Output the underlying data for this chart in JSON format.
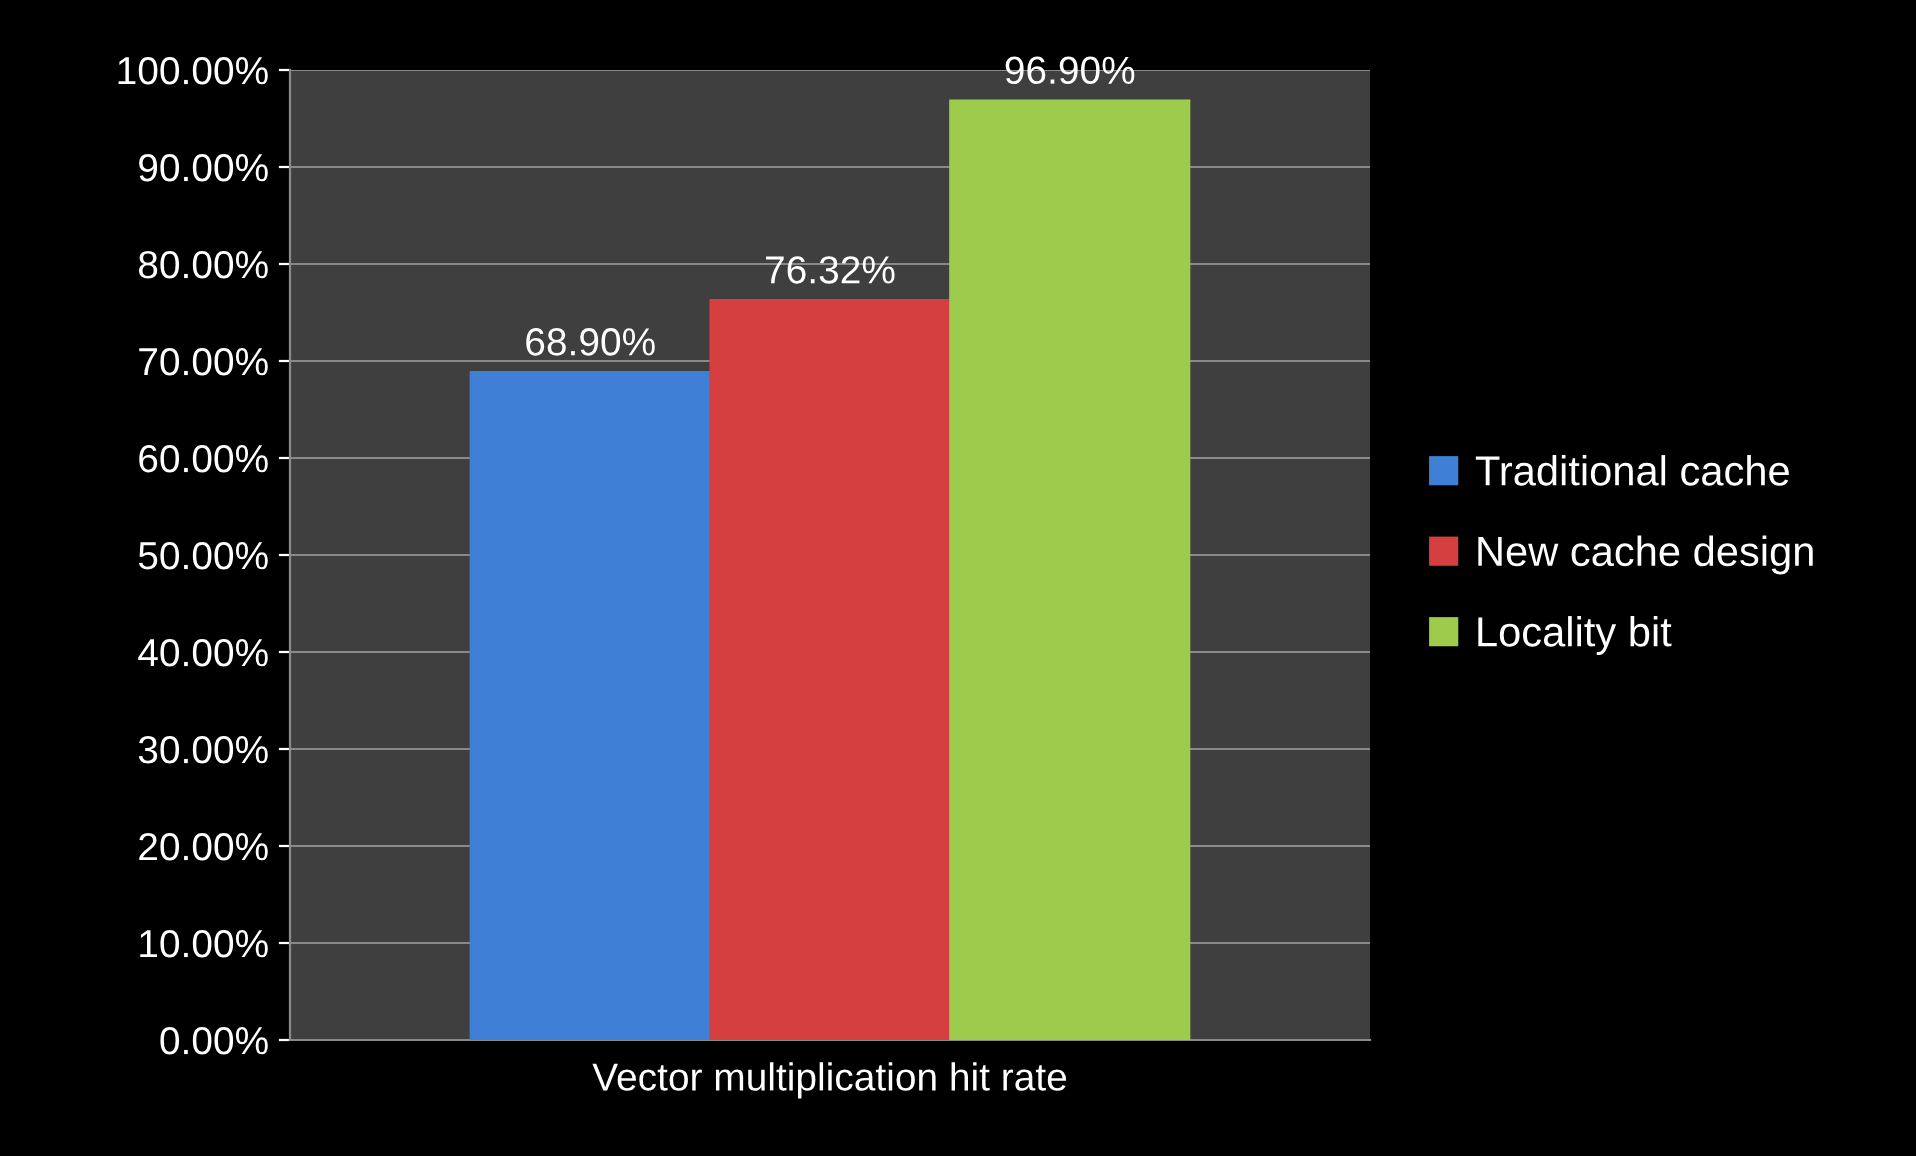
{
  "chart_data": {
    "type": "bar",
    "categories": [
      "Vector multiplication hit rate"
    ],
    "series": [
      {
        "name": "Traditional cache",
        "color": "#3f7fd6",
        "values": [
          68.9
        ],
        "value_labels": [
          "68.90%"
        ]
      },
      {
        "name": "New cache design",
        "color": "#d63f3f",
        "values": [
          76.32
        ],
        "value_labels": [
          "76.32%"
        ]
      },
      {
        "name": "Locality bit",
        "color": "#9dcb4c",
        "values": [
          96.9
        ],
        "value_labels": [
          "96.90%"
        ]
      }
    ],
    "ylim": [
      0,
      100
    ],
    "yticks": [
      {
        "value": 0,
        "label": "0.00%"
      },
      {
        "value": 10,
        "label": "10.00%"
      },
      {
        "value": 20,
        "label": "20.00%"
      },
      {
        "value": 30,
        "label": "30.00%"
      },
      {
        "value": 40,
        "label": "40.00%"
      },
      {
        "value": 50,
        "label": "50.00%"
      },
      {
        "value": 60,
        "label": "60.00%"
      },
      {
        "value": 70,
        "label": "70.00%"
      },
      {
        "value": 80,
        "label": "80.00%"
      },
      {
        "value": 90,
        "label": "90.00%"
      },
      {
        "value": 100,
        "label": "100.00%"
      }
    ],
    "grid": "y",
    "legend": "right"
  }
}
